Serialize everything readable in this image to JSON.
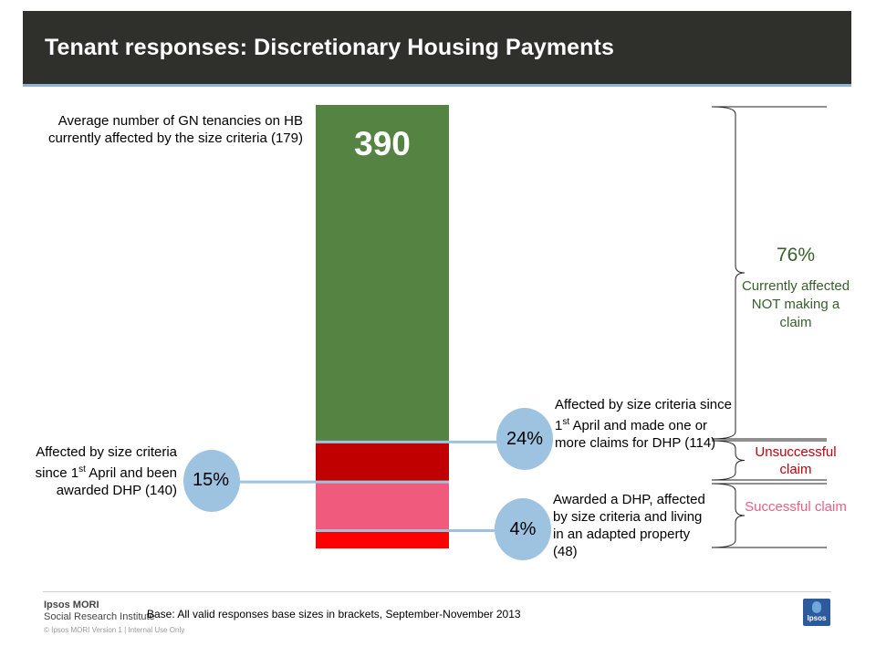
{
  "title": "Tenant responses: Discretionary Housing Payments",
  "chart_data": {
    "type": "bar",
    "stacked": true,
    "total_value": "390",
    "segments": [
      {
        "name": "Currently affected NOT making a claim",
        "value": 76,
        "color": "#558342"
      },
      {
        "name": "Unsuccessful claim",
        "value": 9,
        "color": "#c00000"
      },
      {
        "name": "Successful claim",
        "value": 11,
        "color": "#f05a7d"
      },
      {
        "name": "Adapted property",
        "value": 4,
        "color": "#ff0000"
      }
    ],
    "annotations": {
      "avg_label": "Average number of GN tenancies on HB currently affected by the size criteria (179)",
      "left_label_pre": "Affected by size criteria since 1",
      "left_label_sup": "st",
      "left_label_post": " April and been awarded DHP (140)",
      "mid_top_pre": "Affected by size criteria since 1",
      "mid_top_sup": "st",
      "mid_top_post": " April and made one or more claims for DHP (114)",
      "mid_bot": "Awarded a DHP, affected by size criteria and living in an adapted property (48)",
      "pct_76": "76%",
      "currently_affected": "Currently affected NOT making a claim",
      "unsuccessful": "Unsuccessful claim",
      "successful": "Successful claim"
    },
    "bubbles": [
      {
        "label": "24%",
        "color": "#9ec3e0"
      },
      {
        "label": "15%",
        "color": "#9ec3e0"
      },
      {
        "label": "4%",
        "color": "#9ec3e0"
      }
    ],
    "connector_color": "#9ec3e0"
  },
  "footer": {
    "logo_line1": "Ipsos MORI",
    "logo_line2": "Social Research Institute",
    "base": "Base: All valid responses base sizes in brackets, September-November 2013",
    "copyright": "© Ipsos MORI  Version 1 | Internal Use Only",
    "badge": "Ipsos"
  }
}
